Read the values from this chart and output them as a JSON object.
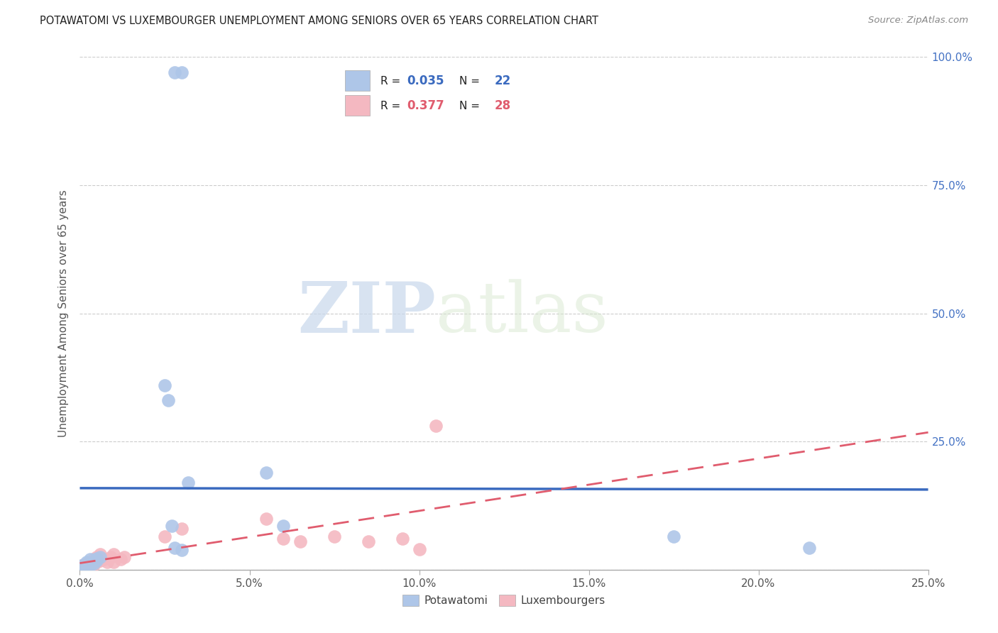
{
  "title": "POTAWATOMI VS LUXEMBOURGER UNEMPLOYMENT AMONG SENIORS OVER 65 YEARS CORRELATION CHART",
  "source": "Source: ZipAtlas.com",
  "ylabel": "Unemployment Among Seniors over 65 years",
  "xlim": [
    0.0,
    0.25
  ],
  "ylim": [
    0.0,
    1.0
  ],
  "xticks": [
    0.0,
    0.05,
    0.1,
    0.15,
    0.2,
    0.25
  ],
  "yticks": [
    0.0,
    0.25,
    0.5,
    0.75,
    1.0
  ],
  "xtick_labels": [
    "0.0%",
    "5.0%",
    "10.0%",
    "15.0%",
    "20.0%",
    "25.0%"
  ],
  "right_ytick_labels": [
    "",
    "25.0%",
    "50.0%",
    "75.0%",
    "100.0%"
  ],
  "potawatomi_x": [
    0.001,
    0.001,
    0.002,
    0.002,
    0.003,
    0.003,
    0.004,
    0.005,
    0.005,
    0.006,
    0.025,
    0.026,
    0.027,
    0.028,
    0.03,
    0.032,
    0.055,
    0.06,
    0.175,
    0.215,
    0.028,
    0.03
  ],
  "potawatomi_y": [
    0.005,
    0.01,
    0.008,
    0.015,
    0.01,
    0.02,
    0.012,
    0.018,
    0.022,
    0.025,
    0.36,
    0.33,
    0.085,
    0.042,
    0.038,
    0.17,
    0.19,
    0.085,
    0.065,
    0.042,
    0.97,
    0.97
  ],
  "luxembourger_x": [
    0.001,
    0.001,
    0.002,
    0.003,
    0.003,
    0.004,
    0.004,
    0.005,
    0.005,
    0.006,
    0.006,
    0.007,
    0.008,
    0.009,
    0.01,
    0.01,
    0.012,
    0.013,
    0.025,
    0.03,
    0.055,
    0.06,
    0.065,
    0.075,
    0.085,
    0.095,
    0.1,
    0.105
  ],
  "luxembourger_y": [
    0.005,
    0.01,
    0.012,
    0.008,
    0.015,
    0.01,
    0.02,
    0.015,
    0.025,
    0.018,
    0.03,
    0.02,
    0.015,
    0.025,
    0.015,
    0.03,
    0.02,
    0.025,
    0.065,
    0.08,
    0.1,
    0.06,
    0.055,
    0.065,
    0.055,
    0.06,
    0.04,
    0.28
  ],
  "potawatomi_color": "#aec6e8",
  "luxembourger_color": "#f4b8c1",
  "potawatomi_line_color": "#3a6abf",
  "luxembourger_line_color": "#e05c6e",
  "potawatomi_R": 0.035,
  "potawatomi_N": 22,
  "luxembourger_R": 0.377,
  "luxembourger_N": 28,
  "watermark_zip": "ZIP",
  "watermark_atlas": "atlas",
  "legend_potawatomi": "Potawatomi",
  "legend_luxembourger": "Luxembourgers",
  "right_ytick_color": "#4472c4",
  "grid_color": "#cccccc",
  "scatter_size": 180
}
